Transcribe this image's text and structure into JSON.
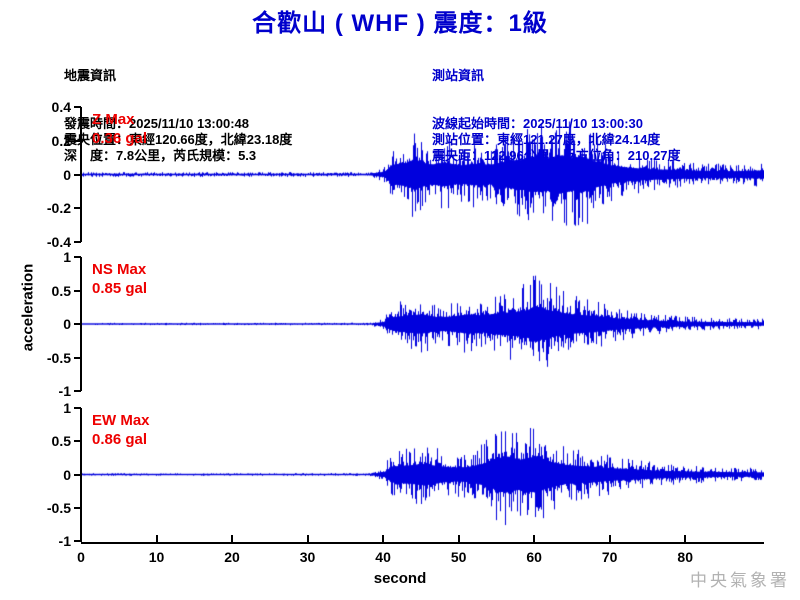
{
  "title": "合歡山 ( WHF )  震度：1級",
  "colors": {
    "title_blue": "#0000cc",
    "station_blue": "#0000cc",
    "waveform_blue": "#0000dd",
    "label_red": "#ee0000",
    "watermark_gray": "#b2b2b2"
  },
  "earthquake_info": {
    "heading": "地震資訊",
    "lines": [
      "發震時間：2025/11/10 13:00:48",
      "震央位置：東經120.66度，北緯23.18度",
      "深　度：7.8公里，芮氏規模：5.3"
    ]
  },
  "station_info": {
    "heading": "測站資訊",
    "lines": [
      "波線起始時間：2025/11/10 13:00:30",
      "測站位置：東經121.27度，北緯24.14度",
      "震央距：122.96公里，反方位角：210.27度"
    ]
  },
  "watermark": "中央氣象署",
  "chart_data": {
    "type": "line",
    "subtype": "seismogram-3-component",
    "xlabel": "second",
    "ylabel": "acceleration",
    "x_range": [
      0,
      90.3
    ],
    "x_ticks": [
      0,
      10,
      20,
      30,
      40,
      50,
      60,
      70,
      80
    ],
    "grid": false,
    "channels": [
      {
        "name": "Z",
        "max_label": "Z Max",
        "max_value_label": "0.36 gal",
        "max_value_gal": 0.36,
        "ylim": [
          -0.4,
          0.4
        ],
        "y_ticks": [
          0.4,
          0.2,
          0,
          -0.2,
          -0.4
        ],
        "envelope": [
          [
            0,
            0.014
          ],
          [
            38,
            0.015
          ],
          [
            40,
            0.05
          ],
          [
            41,
            0.18
          ],
          [
            43,
            0.22
          ],
          [
            44,
            0.28
          ],
          [
            46,
            0.18
          ],
          [
            48,
            0.22
          ],
          [
            50,
            0.17
          ],
          [
            52,
            0.2
          ],
          [
            54,
            0.18
          ],
          [
            56,
            0.24
          ],
          [
            58,
            0.28
          ],
          [
            60,
            0.32
          ],
          [
            62,
            0.3
          ],
          [
            63,
            0.36
          ],
          [
            65,
            0.3
          ],
          [
            66,
            0.34
          ],
          [
            68,
            0.24
          ],
          [
            70,
            0.17
          ],
          [
            72,
            0.13
          ],
          [
            75,
            0.1
          ],
          [
            78,
            0.085
          ],
          [
            82,
            0.07
          ],
          [
            86,
            0.06
          ],
          [
            90,
            0.075
          ]
        ]
      },
      {
        "name": "NS",
        "max_label": "NS Max",
        "max_value_label": "0.85 gal",
        "max_value_gal": 0.85,
        "ylim": [
          -1,
          1
        ],
        "y_ticks": [
          1,
          0.5,
          0,
          -0.5,
          -1
        ],
        "envelope": [
          [
            0,
            0.018
          ],
          [
            38,
            0.02
          ],
          [
            40,
            0.1
          ],
          [
            41,
            0.3
          ],
          [
            43,
            0.4
          ],
          [
            45,
            0.45
          ],
          [
            47,
            0.32
          ],
          [
            49,
            0.35
          ],
          [
            51,
            0.45
          ],
          [
            53,
            0.4
          ],
          [
            55,
            0.5
          ],
          [
            57,
            0.55
          ],
          [
            59,
            0.65
          ],
          [
            60,
            0.85
          ],
          [
            61,
            0.7
          ],
          [
            63,
            0.55
          ],
          [
            65,
            0.45
          ],
          [
            67,
            0.4
          ],
          [
            69,
            0.33
          ],
          [
            71,
            0.26
          ],
          [
            74,
            0.19
          ],
          [
            77,
            0.14
          ],
          [
            80,
            0.11
          ],
          [
            85,
            0.09
          ],
          [
            90,
            0.08
          ]
        ]
      },
      {
        "name": "EW",
        "max_label": "EW Max",
        "max_value_label": "0.86 gal",
        "max_value_gal": 0.86,
        "ylim": [
          -1,
          1
        ],
        "y_ticks": [
          1,
          0.5,
          0,
          -0.5,
          -1
        ],
        "envelope": [
          [
            0,
            0.02
          ],
          [
            38,
            0.022
          ],
          [
            40,
            0.12
          ],
          [
            41,
            0.38
          ],
          [
            43,
            0.42
          ],
          [
            45,
            0.5
          ],
          [
            47,
            0.4
          ],
          [
            49,
            0.33
          ],
          [
            51,
            0.35
          ],
          [
            53,
            0.5
          ],
          [
            55,
            0.75
          ],
          [
            56,
            0.86
          ],
          [
            58,
            0.7
          ],
          [
            60,
            0.85
          ],
          [
            62,
            0.6
          ],
          [
            64,
            0.45
          ],
          [
            66,
            0.4
          ],
          [
            68,
            0.36
          ],
          [
            70,
            0.3
          ],
          [
            72,
            0.26
          ],
          [
            75,
            0.2
          ],
          [
            78,
            0.16
          ],
          [
            82,
            0.13
          ],
          [
            86,
            0.11
          ],
          [
            90,
            0.1
          ]
        ]
      }
    ]
  }
}
